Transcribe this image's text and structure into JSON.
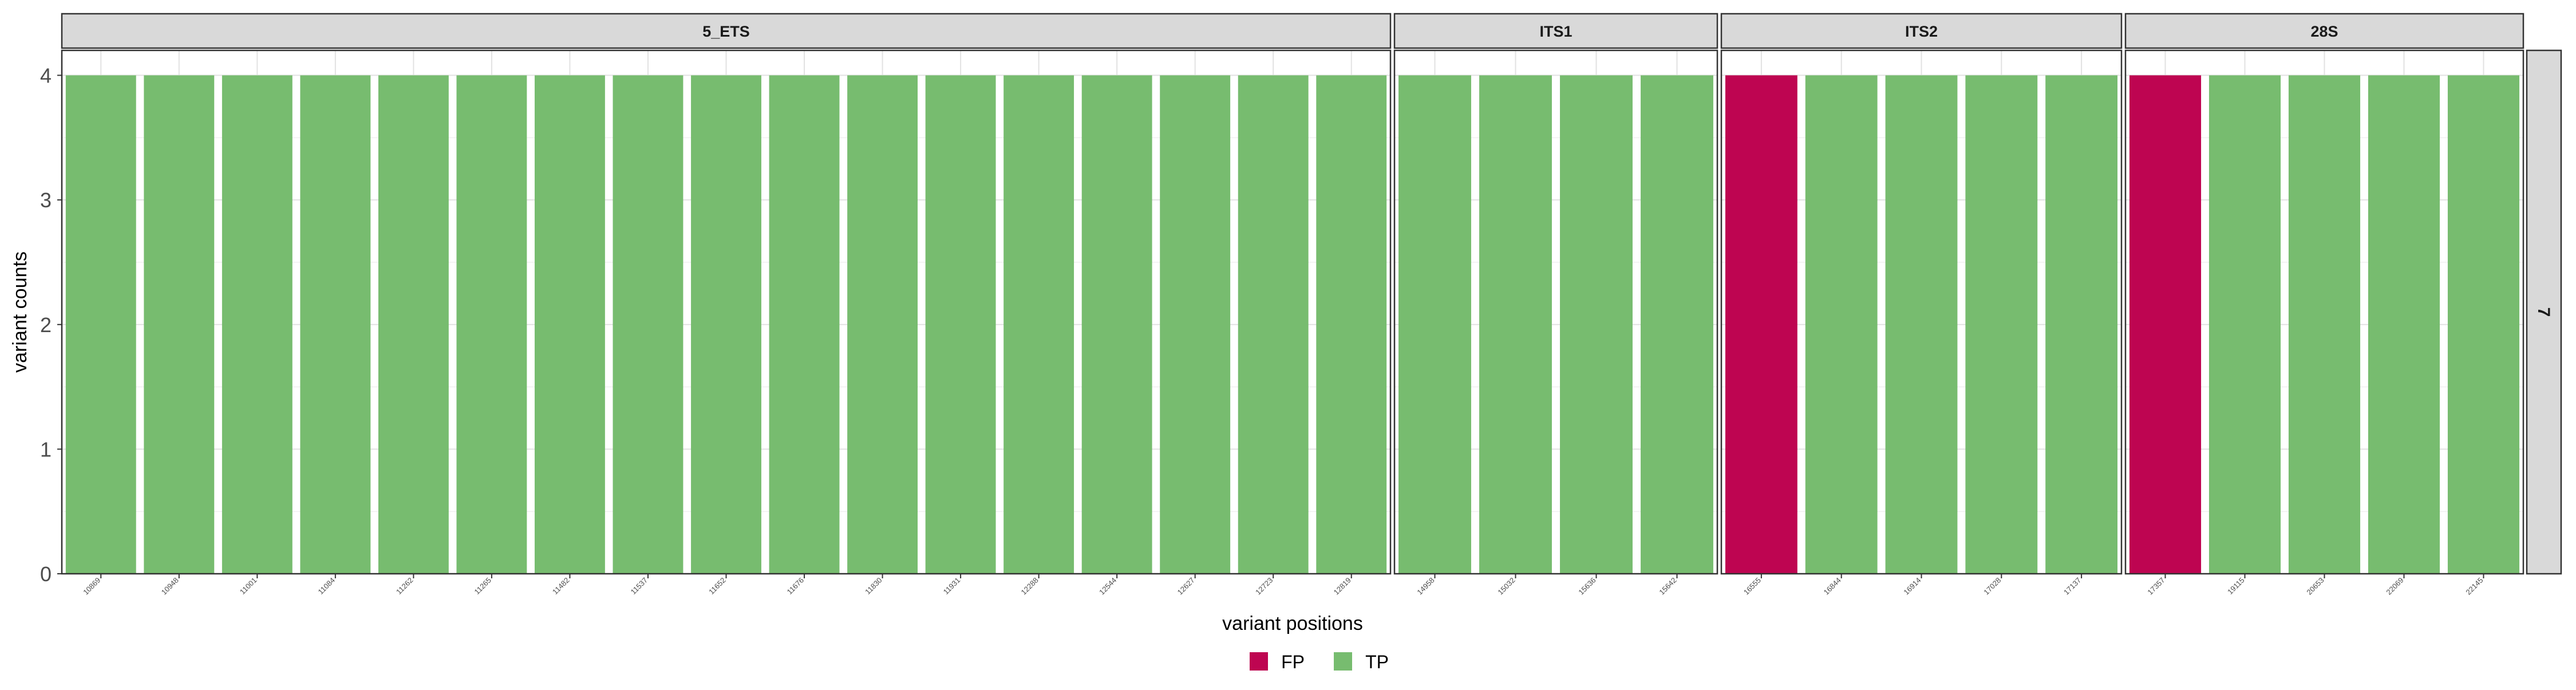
{
  "chart_data": {
    "type": "bar",
    "xlabel": "variant positions",
    "ylabel": "variant counts",
    "ylim": [
      0,
      4.2
    ],
    "yticks": [
      0,
      1,
      2,
      3,
      4
    ],
    "row_strip": "7",
    "grid": true,
    "legend_position": "bottom",
    "colors": {
      "FP": "#BE0551",
      "TP": "#77BC6F"
    },
    "legend": [
      {
        "label": "FP",
        "color": "#BE0551"
      },
      {
        "label": "TP",
        "color": "#77BC6F"
      }
    ],
    "panels": [
      {
        "label": "5_ETS",
        "categories": [
          "10869",
          "10948",
          "11001",
          "11084",
          "11262",
          "11265",
          "11482",
          "11537",
          "11652",
          "11676",
          "11830",
          "11931",
          "12288",
          "12544",
          "12627",
          "12723",
          "12819"
        ],
        "values": [
          4,
          4,
          4,
          4,
          4,
          4,
          4,
          4,
          4,
          4,
          4,
          4,
          4,
          4,
          4,
          4,
          4
        ],
        "classes": [
          "TP",
          "TP",
          "TP",
          "TP",
          "TP",
          "TP",
          "TP",
          "TP",
          "TP",
          "TP",
          "TP",
          "TP",
          "TP",
          "TP",
          "TP",
          "TP",
          "TP"
        ]
      },
      {
        "label": "ITS1",
        "categories": [
          "14958",
          "15032",
          "15636",
          "15642"
        ],
        "values": [
          4,
          4,
          4,
          4
        ],
        "classes": [
          "TP",
          "TP",
          "TP",
          "TP"
        ]
      },
      {
        "label": "ITS2",
        "categories": [
          "16555",
          "16844",
          "16914",
          "17028",
          "17137"
        ],
        "values": [
          4,
          4,
          4,
          4,
          4
        ],
        "classes": [
          "FP",
          "TP",
          "TP",
          "TP",
          "TP"
        ]
      },
      {
        "label": "28S",
        "categories": [
          "17357",
          "19115",
          "20653",
          "22069",
          "22145"
        ],
        "values": [
          4,
          4,
          4,
          4,
          4
        ],
        "classes": [
          "FP",
          "TP",
          "TP",
          "TP",
          "TP"
        ]
      }
    ]
  }
}
